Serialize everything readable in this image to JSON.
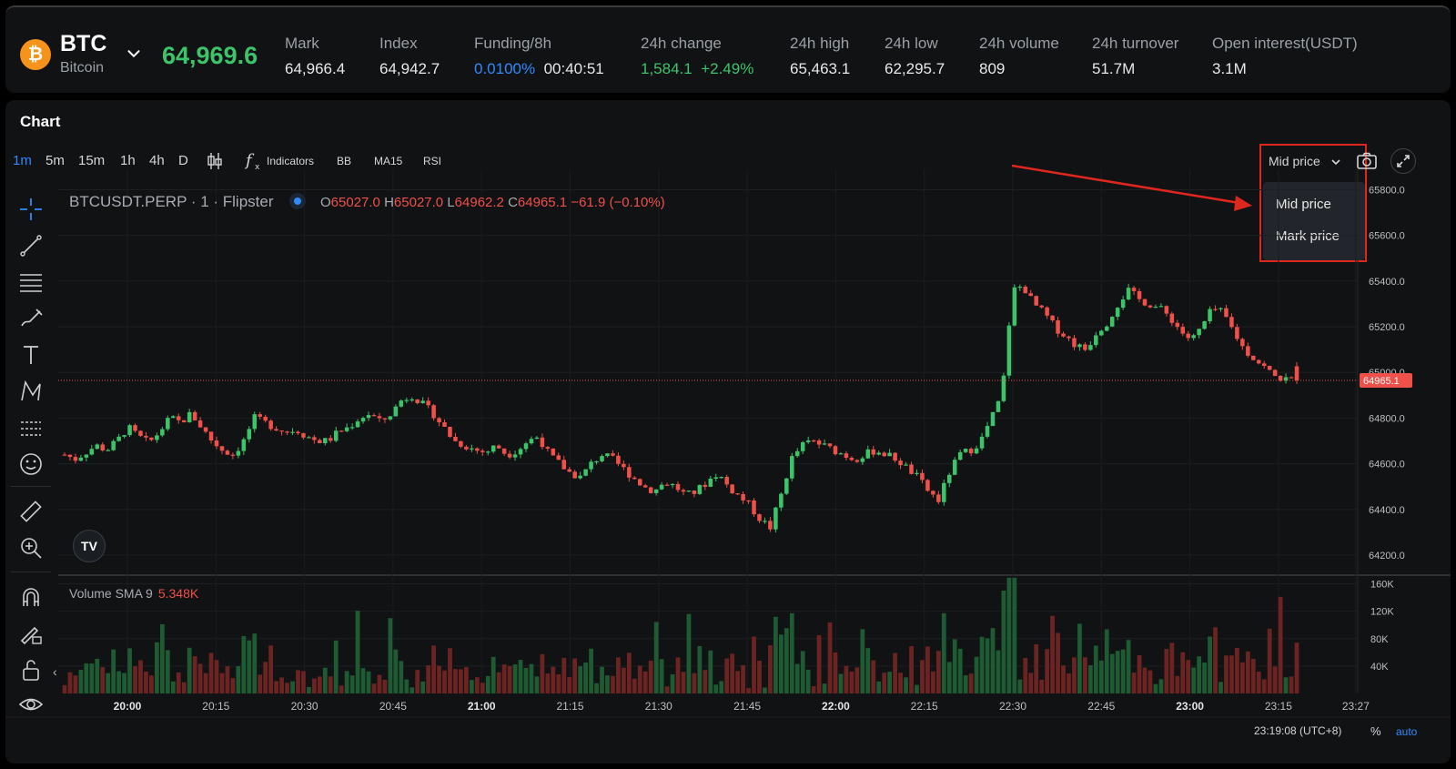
{
  "ticker": {
    "symbol": "BTC",
    "name": "Bitcoin",
    "icon_letter": "₿",
    "last_price": "64,969.6",
    "stats": [
      {
        "label": "Mark",
        "value": "64,966.4"
      },
      {
        "label": "Index",
        "value": "64,942.7"
      },
      {
        "label": "Funding/8h",
        "value": "0.0100%",
        "value2": "00:40:51"
      },
      {
        "label": "24h change",
        "value": "1,584.1",
        "value2": "+2.49%"
      },
      {
        "label": "24h high",
        "value": "65,463.1"
      },
      {
        "label": "24h low",
        "value": "62,295.7"
      },
      {
        "label": "24h volume",
        "value": "809"
      },
      {
        "label": "24h turnover",
        "value": "51.7M"
      },
      {
        "label": "Open interest(USDT)",
        "value": "3.1M"
      }
    ]
  },
  "panel": {
    "title": "Chart",
    "timeframes": [
      "1m",
      "5m",
      "15m",
      "1h",
      "4h",
      "D"
    ],
    "active_timeframe": "1m",
    "tools": [
      "Indicators",
      "BB",
      "MA15",
      "RSI"
    ],
    "price_source": {
      "selected": "Mid price",
      "options": [
        "Mid price",
        "Mark price"
      ]
    }
  },
  "legend": {
    "symbol": "BTCUSDT.PERP · 1 · Flipster",
    "o_key": "O",
    "o": "65027.0",
    "h_key": "H",
    "h": "65027.0",
    "l_key": "L",
    "l": "64962.2",
    "c_key": "C",
    "c": "64965.1",
    "change": "−61.9 (−0.10%)"
  },
  "volume_legend": {
    "label": "Volume SMA 9",
    "value": "5.348K"
  },
  "chart_data": {
    "type": "candlestick",
    "price_axis": {
      "ticks": [
        "65800.0",
        "65600.0",
        "65400.0",
        "65200.0",
        "65000.0",
        "64800.0",
        "64600.0",
        "64400.0",
        "64200.0"
      ],
      "last_price_label": "64965.1",
      "last_price": 64965.1,
      "range": [
        64120,
        65850
      ]
    },
    "volume_axis": {
      "ticks": [
        "160K",
        "120K",
        "80K",
        "40K"
      ],
      "range": [
        0,
        170000
      ]
    },
    "time_axis": {
      "ticks": [
        {
          "label": "20:00",
          "bold": true
        },
        {
          "label": "20:15",
          "bold": false
        },
        {
          "label": "20:30",
          "bold": false
        },
        {
          "label": "20:45",
          "bold": false
        },
        {
          "label": "21:00",
          "bold": true
        },
        {
          "label": "21:15",
          "bold": false
        },
        {
          "label": "21:30",
          "bold": false
        },
        {
          "label": "21:45",
          "bold": false
        },
        {
          "label": "22:00",
          "bold": true
        },
        {
          "label": "22:15",
          "bold": false
        },
        {
          "label": "22:30",
          "bold": false
        },
        {
          "label": "22:45",
          "bold": false
        },
        {
          "label": "23:00",
          "bold": true
        },
        {
          "label": "23:15",
          "bold": false
        },
        {
          "label": "23:27",
          "bold": false
        }
      ]
    },
    "close_path": [
      64640,
      64620,
      64650,
      64680,
      64660,
      64700,
      64760,
      64720,
      64690,
      64740,
      64800,
      64780,
      64820,
      64760,
      64700,
      64660,
      64640,
      64700,
      64800,
      64780,
      64760,
      64740,
      64750,
      64720,
      64700,
      64700,
      64740,
      64760,
      64800,
      64820,
      64780,
      64820,
      64880,
      64900,
      64860,
      64820,
      64760,
      64700,
      64680,
      64660,
      64650,
      64680,
      64640,
      64660,
      64700,
      64720,
      64640,
      64600,
      64560,
      64540,
      64600,
      64640,
      64620,
      64580,
      64540,
      64500,
      64480,
      64520,
      64500,
      64460,
      64480,
      64520,
      64560,
      64500,
      64460,
      64420,
      64360,
      64320,
      64460,
      64620,
      64680,
      64700,
      64680,
      64660,
      64640,
      64620,
      64640,
      64660,
      64640,
      64620,
      64580,
      64540,
      64480,
      64440,
      64560,
      64640,
      64660,
      64700,
      64800,
      64900,
      65360,
      65380,
      65300,
      65260,
      65200,
      65160,
      65120,
      65100,
      65180,
      65220,
      65300,
      65360,
      65320,
      65300,
      65280,
      65240,
      65180,
      65140,
      65200,
      65280,
      65260,
      65180,
      65100,
      65060,
      65020,
      64980,
      64970,
      64965
    ],
    "footer_time": "23:19:08 (UTC+8)",
    "footer_pct": "%",
    "footer_auto": "auto"
  },
  "colors": {
    "up": "#3cc46a",
    "down": "#f0504a",
    "accent": "#2e8bff",
    "highlight_box": "#e0271e"
  }
}
